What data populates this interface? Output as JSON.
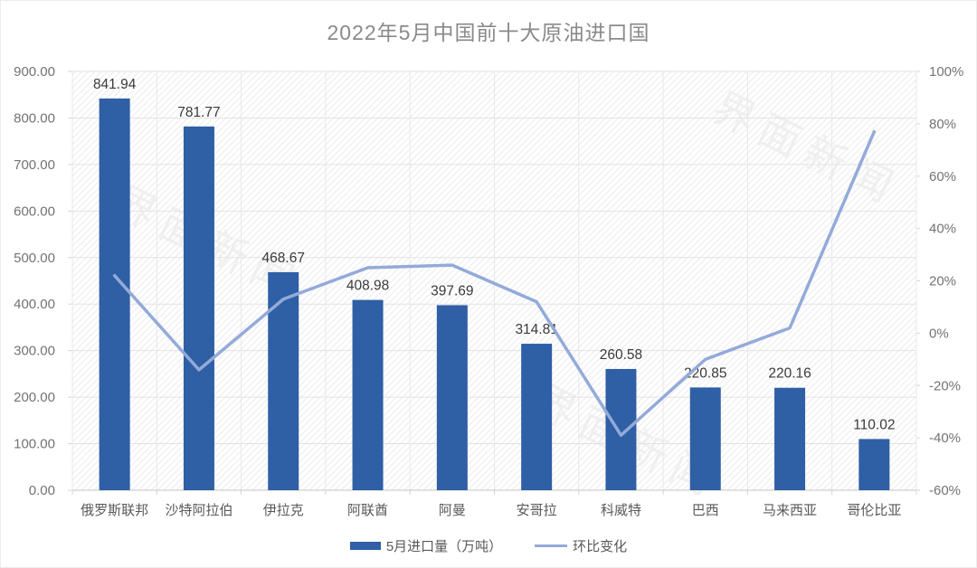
{
  "chart_data": {
    "type": "bar+line combo",
    "title": "2022年5月中国前十大原油进口国",
    "categories": [
      "俄罗斯联邦",
      "沙特阿拉伯",
      "伊拉克",
      "阿联酋",
      "阿曼",
      "安哥拉",
      "科威特",
      "巴西",
      "马来西亚",
      "哥伦比亚"
    ],
    "series": [
      {
        "name": "5月进口量（万吨）",
        "type": "bar",
        "axis": "left",
        "values": [
          841.94,
          781.77,
          468.67,
          408.98,
          397.69,
          314.81,
          260.58,
          220.85,
          220.16,
          110.02
        ],
        "data_labels": [
          "841.94",
          "781.77",
          "468.67",
          "408.98",
          "397.69",
          "314.81",
          "260.58",
          "220.85",
          "220.16",
          "110.02"
        ]
      },
      {
        "name": "环比变化",
        "type": "line",
        "axis": "right",
        "values_percent": [
          22,
          -14,
          13,
          25,
          26,
          12,
          -39,
          -10,
          2,
          77
        ]
      }
    ],
    "left_axis": {
      "min": 0,
      "max": 900,
      "step": 100,
      "ticks_top_to_bottom": [
        "900.00",
        "800.00",
        "700.00",
        "600.00",
        "500.00",
        "400.00",
        "300.00",
        "200.00",
        "100.00",
        "0.00"
      ]
    },
    "right_axis": {
      "min": -60,
      "max": 100,
      "step": 20,
      "ticks_top_to_bottom": [
        "100%",
        "80%",
        "60%",
        "40%",
        "20%",
        "0%",
        "-20%",
        "-40%",
        "-60%"
      ]
    },
    "grid": "horizontal and vertical light gridlines, hatched plot background",
    "legend_position": "bottom",
    "data_labels": true
  },
  "legend": [
    {
      "label": "5月进口量（万吨）"
    },
    {
      "label": "环比变化"
    }
  ],
  "watermark": {
    "text": "界面新闻"
  },
  "colors": {
    "bar": "#2F5FA5",
    "line": "#93AAD9",
    "grid_h": "#E2E2E2",
    "grid_v": "#E8E8E8",
    "hatch": "#ECECEC",
    "axis_line": "#C6C6C6",
    "tick_mark": "#D4D4D4",
    "axis_text": "#737373",
    "category_text": "#595959",
    "value_label_text": "#3A3A3A",
    "title_text": "#8A8A8A"
  }
}
